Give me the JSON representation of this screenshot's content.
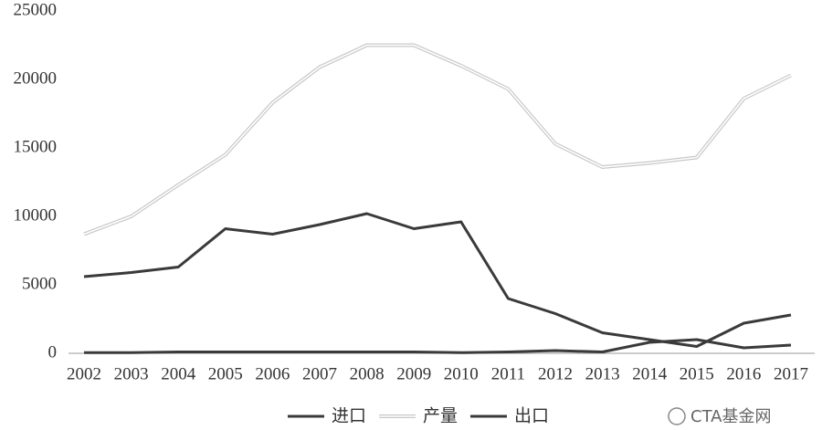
{
  "chart_data": {
    "type": "line",
    "x": [
      "2002",
      "2003",
      "2004",
      "2005",
      "2006",
      "2007",
      "2008",
      "2009",
      "2010",
      "2011",
      "2012",
      "2013",
      "2014",
      "2015",
      "2016",
      "2017"
    ],
    "series": [
      {
        "name": "进口",
        "color": "#3a3a3a",
        "values": [
          50,
          50,
          100,
          100,
          100,
          100,
          100,
          100,
          50,
          100,
          200,
          100,
          800,
          1000,
          400,
          600
        ]
      },
      {
        "name": "产量",
        "color": "#c8c8c8",
        "values": [
          8700,
          10000,
          12300,
          14500,
          18300,
          20900,
          22500,
          22500,
          21000,
          19300,
          15300,
          13600,
          13900,
          14300,
          18600,
          20300
        ]
      },
      {
        "name": "出口",
        "color": "#3a3a3a",
        "values": [
          5600,
          5900,
          6300,
          9100,
          8700,
          9400,
          10200,
          9100,
          9600,
          4000,
          2900,
          1500,
          1000,
          500,
          2200,
          2800
        ]
      }
    ],
    "ylim": [
      0,
      25000
    ],
    "yticks": [
      0,
      5000,
      10000,
      15000,
      20000,
      25000
    ],
    "grid": false,
    "legend": "bottom"
  },
  "watermark": "CTA基金网"
}
